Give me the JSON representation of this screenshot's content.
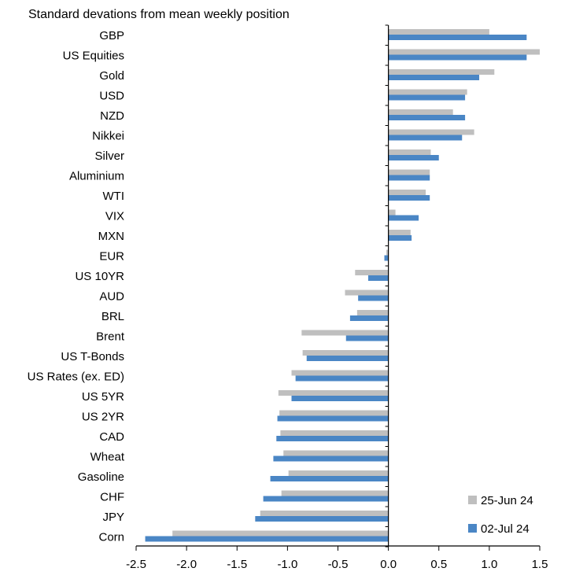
{
  "chart_data": {
    "type": "bar",
    "orientation": "horizontal",
    "title": "Standard devations from mean weekly position",
    "xlabel": "",
    "ylabel": "",
    "xlim": [
      -2.5,
      1.5
    ],
    "xticks": [
      "-2.5",
      "-2.0",
      "-1.5",
      "-1.0",
      "-0.5",
      "0.0",
      "0.5",
      "1.0",
      "1.5"
    ],
    "grid": false,
    "legend_position": "bottom-right",
    "categories": [
      "GBP",
      "US Equities",
      "Gold",
      "USD",
      "NZD",
      "Nikkei",
      "Silver",
      "Aluminium",
      "WTI",
      "VIX",
      "MXN",
      "EUR",
      "US 10YR",
      "AUD",
      "BRL",
      "Brent",
      "US T-Bonds",
      "US Rates (ex. ED)",
      "US 5YR",
      "US 2YR",
      "CAD",
      "Wheat",
      "Gasoline",
      "CHF",
      "JPY",
      "Corn"
    ],
    "series": [
      {
        "name": "25-Jun 24",
        "color": "#BFBFBF",
        "values": [
          1.0,
          1.5,
          1.05,
          0.78,
          0.64,
          0.85,
          0.42,
          0.41,
          0.37,
          0.07,
          0.22,
          -0.02,
          -0.33,
          -0.43,
          -0.31,
          -0.86,
          -0.85,
          -0.96,
          -1.09,
          -1.08,
          -1.07,
          -1.04,
          -0.99,
          -1.06,
          -1.27,
          -2.14
        ]
      },
      {
        "name": "02-Jul 24",
        "color": "#4A86C5",
        "values": [
          1.37,
          1.37,
          0.9,
          0.76,
          0.76,
          0.73,
          0.5,
          0.41,
          0.41,
          0.3,
          0.23,
          -0.04,
          -0.2,
          -0.3,
          -0.38,
          -0.42,
          -0.81,
          -0.92,
          -0.96,
          -1.1,
          -1.11,
          -1.14,
          -1.17,
          -1.24,
          -1.32,
          -2.41
        ]
      }
    ]
  }
}
